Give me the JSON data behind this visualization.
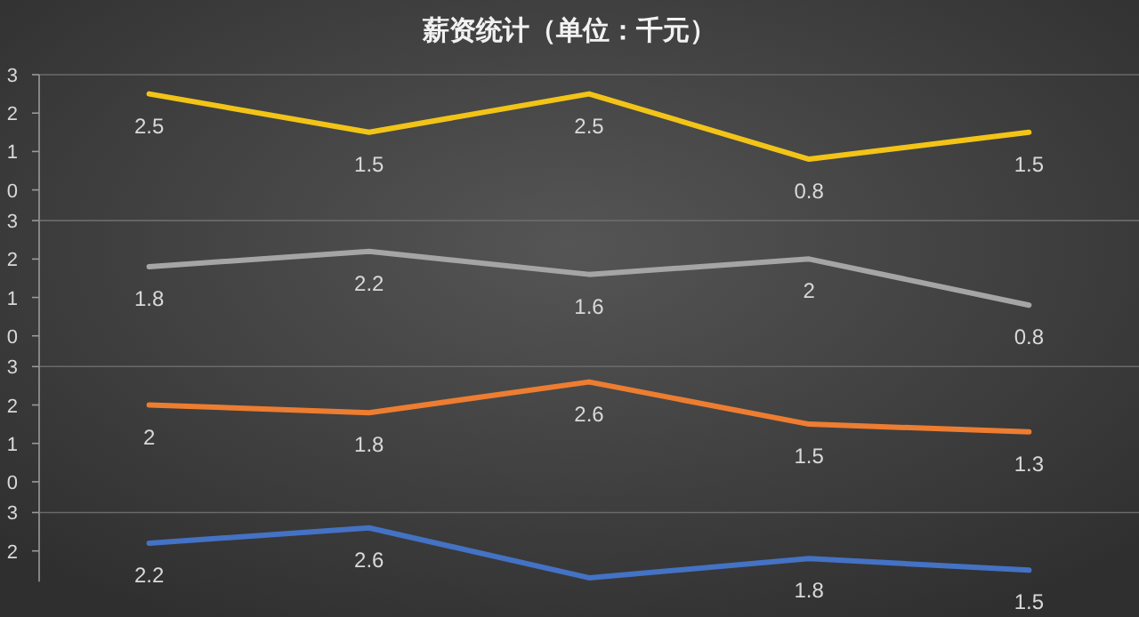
{
  "chart_data": [
    {
      "type": "line",
      "title": "薪资统计（单位：千元）",
      "categories": [
        null,
        null,
        null,
        null,
        null
      ],
      "series": [
        {
          "color": "#f2c417",
          "values": [
            2.5,
            1.5,
            2.5,
            0.8,
            1.5
          ]
        }
      ],
      "ylim": [
        -0.8,
        3
      ],
      "yticks": [
        0,
        1,
        2,
        3
      ],
      "data_labels": true,
      "tick_labels": "y",
      "grid": false
    },
    {
      "type": "line",
      "categories": [
        null,
        null,
        null,
        null,
        null
      ],
      "series": [
        {
          "color": "#a5a5a5",
          "values": [
            1.8,
            2.2,
            1.6,
            2,
            0.8
          ]
        }
      ],
      "ylim": [
        -0.8,
        3
      ],
      "yticks": [
        0,
        1,
        2,
        3
      ],
      "data_labels": true,
      "tick_labels": "y",
      "grid": false
    },
    {
      "type": "line",
      "categories": [
        null,
        null,
        null,
        null,
        null
      ],
      "series": [
        {
          "color": "#ed7d31",
          "values": [
            2,
            1.8,
            2.6,
            1.5,
            1.3
          ]
        }
      ],
      "ylim": [
        -0.8,
        3
      ],
      "yticks": [
        0,
        1,
        2,
        3
      ],
      "data_labels": true,
      "tick_labels": "y",
      "grid": false
    },
    {
      "type": "line",
      "categories": [
        null,
        null,
        null,
        null,
        null
      ],
      "series": [
        {
          "color": "#4472c4",
          "values": [
            2.2,
            2.6,
            1.3,
            1.8,
            1.5
          ],
          "value_labels": [
            "2.2",
            "2.6",
            null,
            "1.8",
            "1.5"
          ]
        }
      ],
      "ylim": [
        1.2,
        3
      ],
      "yticks": [
        2,
        3
      ],
      "tick_labels": "y",
      "grid": false
    }
  ]
}
